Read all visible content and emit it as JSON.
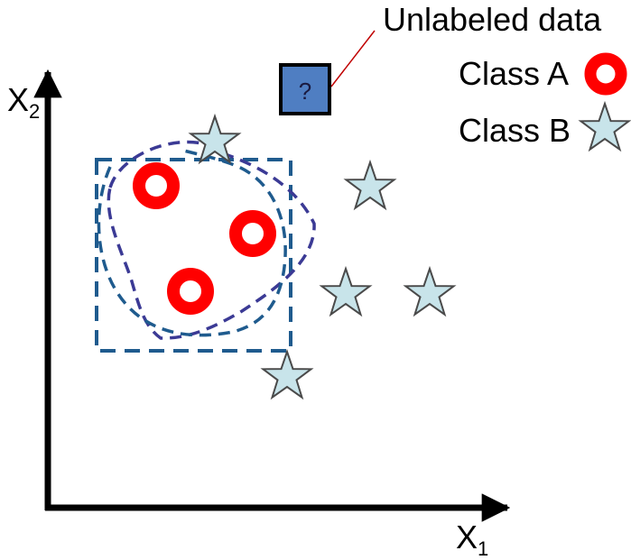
{
  "axes": {
    "x_label": "X",
    "x_subscript": "1",
    "y_label": "X",
    "y_subscript": "2"
  },
  "unlabeled": {
    "label": "Unlabeled data",
    "symbol": "?"
  },
  "legend": {
    "class_a": "Class A",
    "class_b": "Class B"
  },
  "colors": {
    "class_a": "#ff0000",
    "class_b": "#c8e4ea",
    "unlabeled_box": "#4f7ec2",
    "boundary_box": "#1f5b8e",
    "boundary_blob": "#3b3a95",
    "connector": "#c00000",
    "axis": "#000000"
  }
}
